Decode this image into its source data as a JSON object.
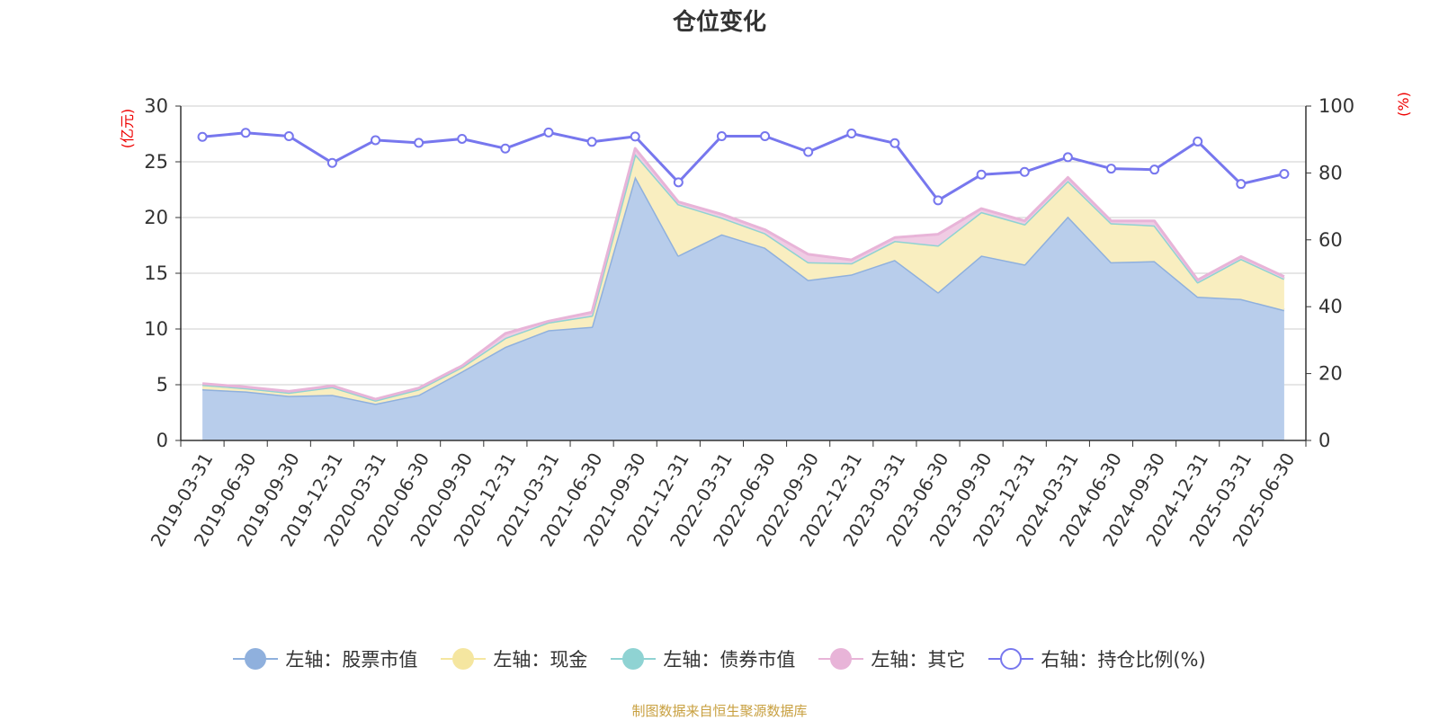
{
  "chart_data": {
    "type": "area",
    "title": "仓位变化",
    "left_unit": "(亿元)",
    "right_unit": "(%)",
    "left_ylim": [
      0,
      30
    ],
    "left_ticks": [
      0,
      5,
      10,
      15,
      20,
      25,
      30
    ],
    "right_ylim": [
      0,
      100
    ],
    "right_ticks": [
      0,
      20,
      40,
      60,
      80,
      100
    ],
    "grid": true,
    "legend_position": "bottom",
    "x": [
      "2019-03-31",
      "2019-06-30",
      "2019-09-30",
      "2019-12-31",
      "2020-03-31",
      "2020-06-30",
      "2020-09-30",
      "2020-12-31",
      "2021-03-31",
      "2021-06-30",
      "2021-09-30",
      "2021-12-31",
      "2022-03-31",
      "2022-06-30",
      "2022-09-30",
      "2022-12-31",
      "2023-03-31",
      "2023-06-30",
      "2023-09-30",
      "2023-12-31",
      "2024-03-31",
      "2024-06-30",
      "2024-09-30",
      "2024-12-31",
      "2025-03-31",
      "2025-06-30"
    ],
    "series": [
      {
        "name": "左轴：股票市值",
        "axis": "left",
        "stacked": true,
        "color": "#8fb0dd",
        "fill": "#b8cdeb",
        "values": [
          4.6,
          4.4,
          4.0,
          4.1,
          3.3,
          4.1,
          6.2,
          8.4,
          9.9,
          10.2,
          23.7,
          16.6,
          18.5,
          17.3,
          14.4,
          14.9,
          16.2,
          13.3,
          16.6,
          15.8,
          20.1,
          16.0,
          16.1,
          12.9,
          12.7,
          11.7
        ]
      },
      {
        "name": "左轴：现金",
        "axis": "left",
        "stacked": true,
        "color": "#f5e6a0",
        "fill": "#f9eec0",
        "values": [
          0.4,
          0.3,
          0.3,
          0.7,
          0.3,
          0.5,
          0.4,
          0.8,
          0.7,
          1.0,
          2.0,
          4.6,
          1.5,
          1.3,
          1.6,
          1.0,
          1.7,
          4.2,
          3.9,
          3.6,
          3.2,
          3.5,
          3.2,
          1.3,
          3.6,
          2.8
        ]
      },
      {
        "name": "左轴：债券市值",
        "axis": "left",
        "stacked": true,
        "color": "#8fd3d3",
        "fill": "#8fd3d3",
        "values": [
          0,
          0,
          0,
          0,
          0,
          0,
          0,
          0,
          0,
          0,
          0,
          0,
          0,
          0,
          0,
          0,
          0,
          0,
          0,
          0,
          0,
          0,
          0,
          0,
          0,
          0
        ]
      },
      {
        "name": "左轴：其它",
        "axis": "left",
        "stacked": true,
        "color": "#e8b4d8",
        "fill": "#f0cce4",
        "values": [
          0.1,
          0.1,
          0.1,
          0.1,
          0.1,
          0.1,
          0.1,
          0.4,
          0.1,
          0.3,
          0.5,
          0.2,
          0.3,
          0.3,
          0.7,
          0.3,
          0.3,
          1.0,
          0.3,
          0.3,
          0.3,
          0.2,
          0.4,
          0.2,
          0.2,
          0.2
        ]
      },
      {
        "name": "右轴：持仓比例(%)",
        "axis": "right",
        "stacked": false,
        "color": "#7777ee",
        "fill": "none",
        "values": [
          90.8,
          92.0,
          91.0,
          83.0,
          89.8,
          89.0,
          90.2,
          87.3,
          92.1,
          89.3,
          90.9,
          77.2,
          91.0,
          91.0,
          86.3,
          91.8,
          88.9,
          71.8,
          79.5,
          80.3,
          84.7,
          81.3,
          81.0,
          89.4,
          76.7,
          79.7
        ]
      }
    ]
  },
  "source_text": "制图数据来自恒生聚源数据库"
}
